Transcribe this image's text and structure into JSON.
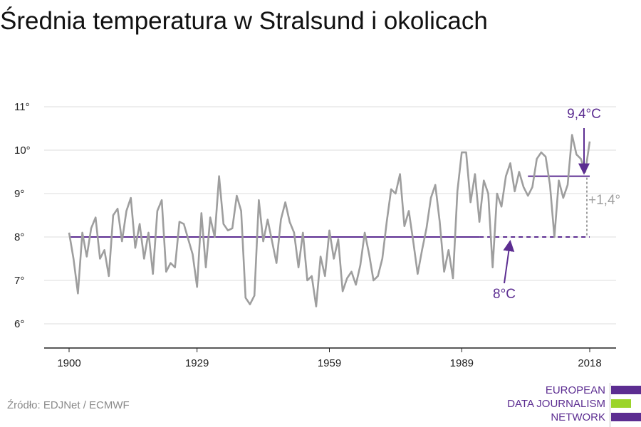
{
  "title": "Średnia temperatura w Stralsund i okolicach",
  "source": "Źródło: EDJNet / ECMWF",
  "logo": {
    "lines": [
      "EUROPEAN",
      "DATA JOURNALISM",
      "NETWORK"
    ],
    "colors": {
      "text": "#5c2d91",
      "bar1": "#5c2d91",
      "bar2": "#9bd42a",
      "bar3": "#5c2d91"
    }
  },
  "colors": {
    "series": "#9e9e9e",
    "reference": "#5c2d91",
    "delta": "#9e9e9e",
    "grid": "#dcdcdc",
    "axis": "#222222"
  },
  "chart_data": {
    "type": "line",
    "title": "Średnia temperatura w Stralsund i okolicach",
    "xlabel": "",
    "ylabel": "",
    "xlim": [
      1900,
      2018
    ],
    "ylim": [
      5.5,
      11.3
    ],
    "x_ticks": [
      1900,
      1929,
      1959,
      1989,
      2018
    ],
    "x_tick_labels": [
      "1900",
      "1929",
      "1959",
      "1989",
      "2018"
    ],
    "y_ticks": [
      6,
      7,
      8,
      9,
      10,
      11
    ],
    "y_tick_labels": [
      "6°",
      "7°",
      "8°",
      "9°",
      "10°",
      "11°"
    ],
    "grid": true,
    "series": [
      {
        "x": [
          1900,
          1901,
          1902,
          1903,
          1904,
          1905,
          1906,
          1907,
          1908,
          1909,
          1910,
          1911,
          1912,
          1913,
          1914,
          1915,
          1916,
          1917,
          1918,
          1919,
          1920,
          1921,
          1922,
          1923,
          1924,
          1925,
          1926,
          1927,
          1928,
          1929,
          1930,
          1931,
          1932,
          1933,
          1934,
          1935,
          1936,
          1937,
          1938,
          1939,
          1940,
          1941,
          1942,
          1943,
          1944,
          1945,
          1946,
          1947,
          1948,
          1949,
          1950,
          1951,
          1952,
          1953,
          1954,
          1955,
          1956,
          1957,
          1958,
          1959,
          1960,
          1961,
          1962,
          1963,
          1964,
          1965,
          1966,
          1967,
          1968,
          1969,
          1970,
          1971,
          1972,
          1973,
          1974,
          1975,
          1976,
          1977,
          1978,
          1979,
          1980,
          1981,
          1982,
          1983,
          1984,
          1985,
          1986,
          1987,
          1988,
          1989,
          1990,
          1991,
          1992,
          1993,
          1994,
          1995,
          1996,
          1997,
          1998,
          1999,
          2000,
          2001,
          2002,
          2003,
          2004,
          2005,
          2006,
          2007,
          2008,
          2009,
          2010,
          2011,
          2012,
          2013,
          2014,
          2015,
          2016,
          2017,
          2018
        ],
        "values": [
          8.1,
          7.5,
          6.7,
          8.1,
          7.55,
          8.2,
          8.45,
          7.5,
          7.7,
          7.1,
          8.5,
          8.65,
          7.9,
          8.6,
          8.9,
          7.75,
          8.3,
          7.5,
          8.1,
          7.15,
          8.6,
          8.85,
          7.2,
          7.4,
          7.3,
          8.35,
          8.3,
          7.95,
          7.6,
          6.85,
          8.55,
          7.3,
          8.45,
          8.0,
          9.4,
          8.3,
          8.15,
          8.2,
          8.95,
          8.6,
          6.6,
          6.45,
          6.65,
          8.85,
          7.9,
          8.4,
          7.9,
          7.4,
          8.4,
          8.8,
          8.35,
          8.1,
          7.3,
          8.1,
          7.0,
          7.1,
          6.4,
          7.55,
          7.1,
          8.15,
          7.5,
          7.95,
          6.75,
          7.05,
          7.2,
          6.9,
          7.35,
          8.1,
          7.6,
          7.0,
          7.1,
          7.5,
          8.35,
          9.1,
          9.0,
          9.45,
          8.25,
          8.6,
          7.9,
          7.15,
          7.7,
          8.2,
          8.9,
          9.2,
          8.35,
          7.2,
          7.7,
          7.05,
          9.05,
          9.95,
          9.95,
          8.8,
          9.45,
          8.35,
          9.3,
          9.0,
          7.3,
          9.0,
          8.7,
          9.4,
          9.7,
          9.05,
          9.5,
          9.15,
          8.95,
          9.15,
          9.8,
          9.95,
          9.85,
          9.2,
          8.0,
          9.3,
          8.9,
          9.2,
          10.35,
          9.9,
          9.8,
          9.5,
          10.2
        ]
      }
    ],
    "reference": {
      "value": 8.0,
      "from": 1900,
      "to": 2018,
      "label": "8°C"
    },
    "recent": {
      "value": 9.4,
      "from": 2004,
      "to": 2018,
      "label": "9,4°C"
    },
    "delta_label": "+1,4°"
  }
}
